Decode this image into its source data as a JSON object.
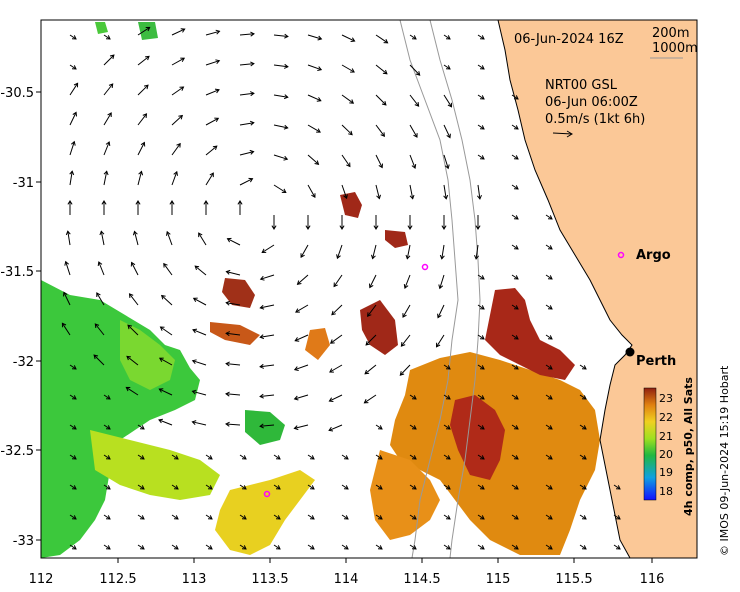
{
  "map": {
    "timestamp": "06-Jun-2024 16Z",
    "depth_contours": [
      "200m",
      "1000m"
    ],
    "current_product": "NRT00 GSL",
    "current_time": "06-Jun 06:00Z",
    "current_scale": "0.5m/s (1kt 6h)",
    "places": {
      "argo": "Argo",
      "perth": "Perth"
    },
    "x_ticks": [
      "112",
      "112.5",
      "113",
      "113.5",
      "114",
      "114.5",
      "115",
      "115.5",
      "116"
    ],
    "y_ticks": [
      "-30.5",
      "-31",
      "-31.5",
      "-32",
      "-32.5",
      "-33"
    ],
    "colorbar": {
      "ticks": [
        "23",
        "22",
        "21",
        "20",
        "19",
        "18"
      ],
      "title": "4h comp, p50, All Sats"
    },
    "credit": "© IMOS 09-Jun-2024 15:19 Hobart",
    "colors": {
      "land": "#fbc897",
      "sst_warm": "#c0392b",
      "sst_cool": "#2ecc40",
      "argo": "#ff00ff"
    }
  }
}
